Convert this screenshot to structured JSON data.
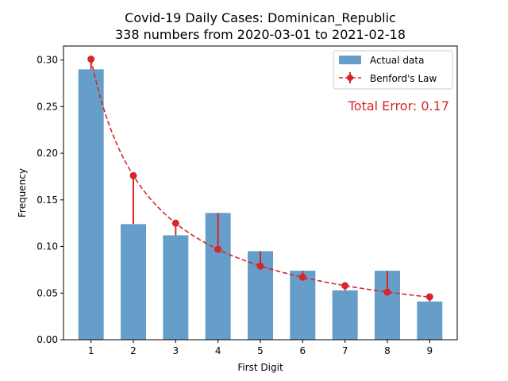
{
  "chart_data": {
    "type": "bar",
    "title": "Covid-19 Daily Cases: Dominican_Republic",
    "subtitle": "338 numbers from 2020-03-01 to 2021-02-18",
    "xlabel": "First Digit",
    "ylabel": "Frequency",
    "categories": [
      "1",
      "2",
      "3",
      "4",
      "5",
      "6",
      "7",
      "8",
      "9"
    ],
    "x": [
      1,
      2,
      3,
      4,
      5,
      6,
      7,
      8,
      9
    ],
    "xlim": [
      0.35,
      9.65
    ],
    "ylim": [
      0,
      0.315
    ],
    "yticks": [
      0.0,
      0.05,
      0.1,
      0.15,
      0.2,
      0.25,
      0.3
    ],
    "ytick_labels": [
      "0.00",
      "0.05",
      "0.10",
      "0.15",
      "0.20",
      "0.25",
      "0.30"
    ],
    "grid": false,
    "legend_position": "top-right",
    "series": [
      {
        "name": "Actual data",
        "kind": "bar",
        "color": "#4a8ec0",
        "values": [
          0.29,
          0.124,
          0.112,
          0.136,
          0.095,
          0.074,
          0.053,
          0.074,
          0.041
        ]
      },
      {
        "name": "Benford's Law",
        "kind": "line",
        "color": "#d62728",
        "style": "dashed",
        "values": [
          0.301,
          0.176,
          0.125,
          0.097,
          0.079,
          0.067,
          0.058,
          0.051,
          0.046
        ]
      }
    ],
    "annotation": {
      "text": "Total Error: 0.17",
      "color": "#d62728",
      "position": "top-right"
    }
  }
}
